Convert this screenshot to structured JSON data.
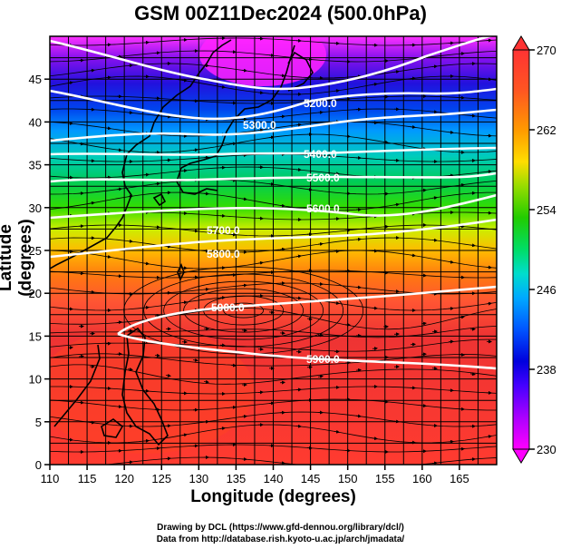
{
  "title": "GSM 00Z11Dec2024 (500.0hPa)",
  "xlabel": "Longitude (degrees)",
  "ylabel": "Latitude  (degrees)",
  "credit_line1": "Drawing by DCL (https://www.gfd-dennou.org/library/dcl/)",
  "credit_line2": "Data from http://database.rish.kyoto-u.ac.jp/arch/jmadata/",
  "map": {
    "lon_range": [
      110,
      170
    ],
    "lat_range": [
      0,
      50
    ],
    "lon_ticks": [
      "110",
      "115",
      "120",
      "125",
      "130",
      "135",
      "140",
      "145",
      "150",
      "155",
      "160",
      "165"
    ],
    "lat_ticks": [
      "0",
      "5",
      "10",
      "15",
      "20",
      "25",
      "30",
      "35",
      "40",
      "45"
    ],
    "gridlines": true,
    "coastlines": true,
    "streamlines": true
  },
  "colorbar": {
    "min": 230,
    "max": 270,
    "tick_labels": [
      "230",
      "238",
      "246",
      "254",
      "262",
      "270"
    ],
    "palette": [
      "#ff00ff",
      "#9900ff",
      "#3300ff",
      "#0000dd",
      "#0066ff",
      "#00ccff",
      "#00dd99",
      "#00cc33",
      "#66dd00",
      "#ccee00",
      "#ffdd00",
      "#ff9900",
      "#ff5522",
      "#ee3333",
      "#ff3333"
    ]
  },
  "contours": {
    "color": "#ffffff",
    "labels": [
      "5200.0",
      "5300.0",
      "5400.0",
      "5500.0",
      "5600.0",
      "5700.0",
      "5800.0",
      "5900.0",
      "5900.0"
    ]
  }
}
